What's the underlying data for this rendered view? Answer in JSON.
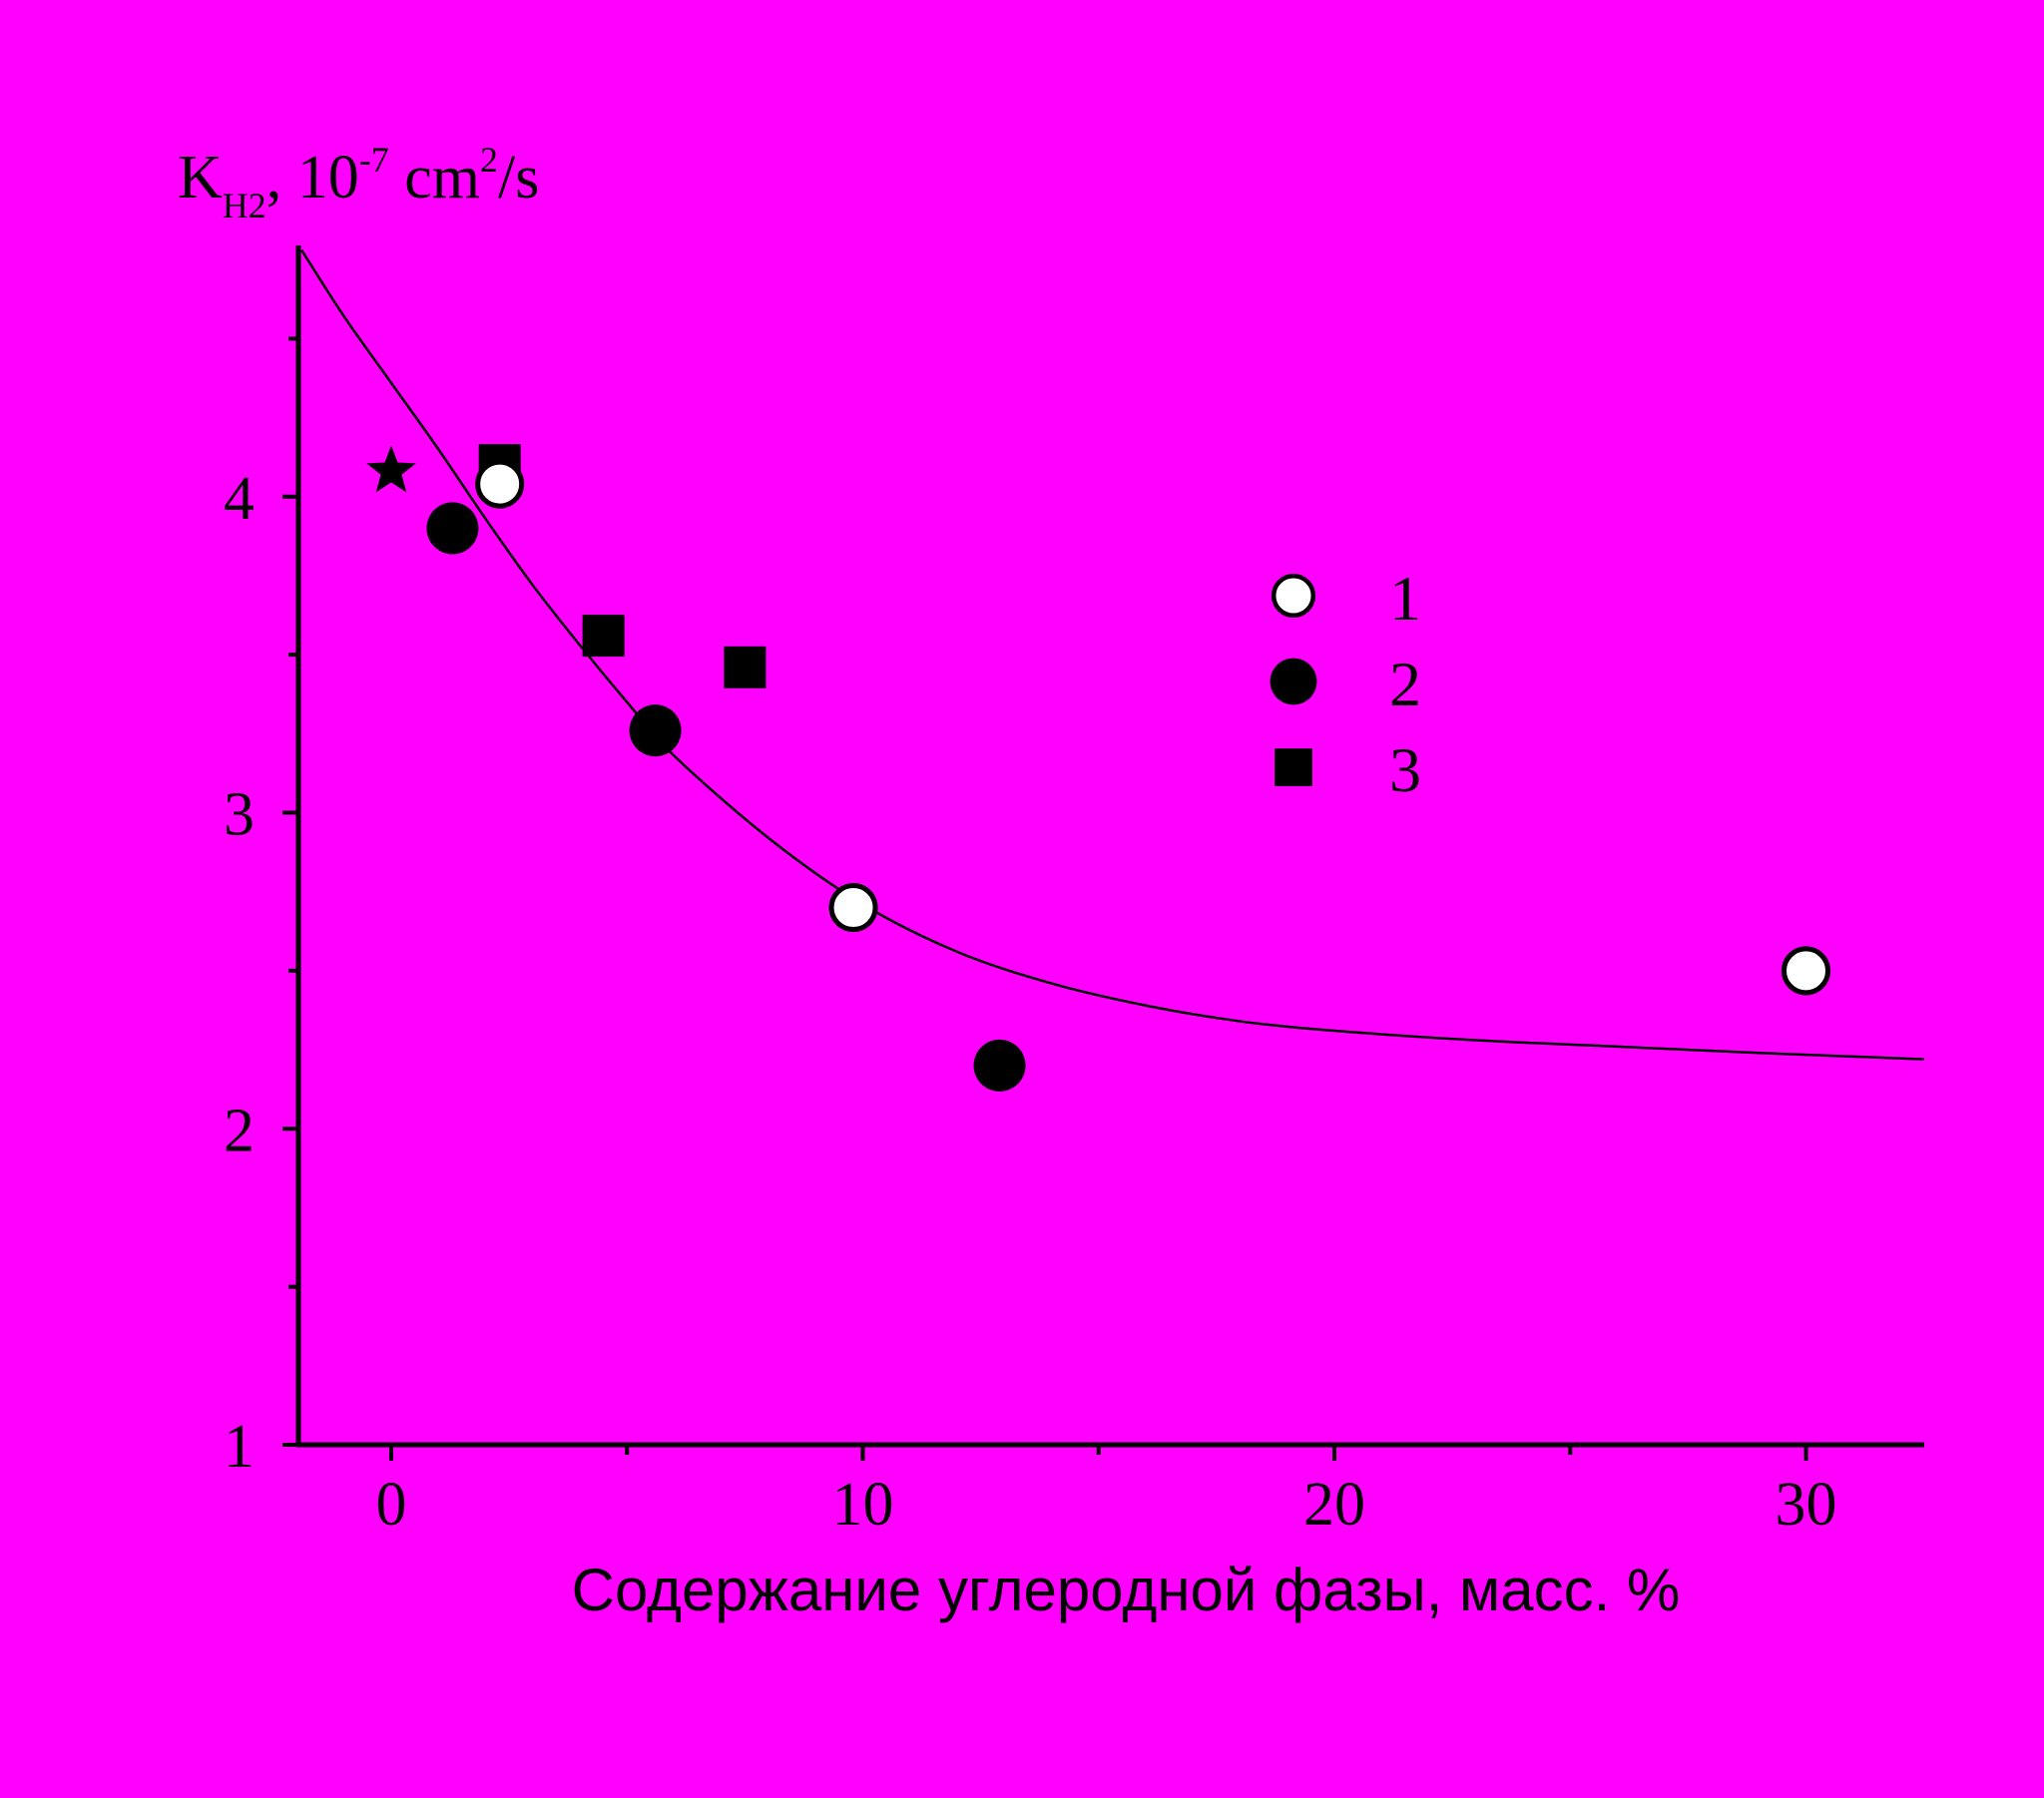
{
  "colors": {
    "background": "#ff00ff",
    "ink": "#000000",
    "open_marker_fill": "#ffffff"
  },
  "chart_data": {
    "type": "scatter",
    "xlabel": "Содержание углеродной фазы, масс. %",
    "ylabel": {
      "symbol": "K",
      "subscript": "H2",
      "text_a": ", 10",
      "exponent_a": "-7",
      "text_b": " cm",
      "exponent_b": "2",
      "text_c": "/s"
    },
    "xlim": [
      -2,
      32.5
    ],
    "ylim": [
      1,
      4.8
    ],
    "x_ticks": [
      0,
      10,
      20,
      30
    ],
    "x_tick_labels": [
      "0",
      "10",
      "20",
      "30"
    ],
    "y_ticks": [
      1,
      2,
      3,
      4
    ],
    "y_tick_labels": [
      "1",
      "2",
      "3",
      "4"
    ],
    "x_minor_ticks": [
      5,
      15,
      25
    ],
    "y_minor_ticks": [
      1.5,
      2.5,
      3.5,
      4.5
    ],
    "grid": false,
    "legend_position": "upper-right",
    "series": [
      {
        "name": "1",
        "marker": "open-circle",
        "points": [
          {
            "x": 2.3,
            "y": 4.04
          },
          {
            "x": 9.8,
            "y": 2.7
          },
          {
            "x": 30.0,
            "y": 2.5
          }
        ]
      },
      {
        "name": "2",
        "marker": "filled-circle",
        "points": [
          {
            "x": 1.3,
            "y": 3.9
          },
          {
            "x": 5.6,
            "y": 3.26
          },
          {
            "x": 12.9,
            "y": 2.2
          }
        ]
      },
      {
        "name": "3",
        "marker": "filled-square",
        "points": [
          {
            "x": 2.3,
            "y": 4.1
          },
          {
            "x": 4.5,
            "y": 3.56
          },
          {
            "x": 7.5,
            "y": 3.46
          }
        ]
      },
      {
        "marker": "star",
        "points": [
          {
            "x": 0.0,
            "y": 4.08
          }
        ]
      }
    ],
    "fit_curve": {
      "points": [
        {
          "x": -1.9,
          "y": 4.78
        },
        {
          "x": -1.0,
          "y": 4.57
        },
        {
          "x": 0.0,
          "y": 4.36
        },
        {
          "x": 1.0,
          "y": 4.15
        },
        {
          "x": 2.0,
          "y": 3.93
        },
        {
          "x": 3.0,
          "y": 3.72
        },
        {
          "x": 4.0,
          "y": 3.53
        },
        {
          "x": 5.0,
          "y": 3.35
        },
        {
          "x": 6.0,
          "y": 3.18
        },
        {
          "x": 8.0,
          "y": 2.92
        },
        {
          "x": 10.0,
          "y": 2.71
        },
        {
          "x": 12.0,
          "y": 2.56
        },
        {
          "x": 14.0,
          "y": 2.46
        },
        {
          "x": 16.0,
          "y": 2.39
        },
        {
          "x": 18.0,
          "y": 2.34
        },
        {
          "x": 20.0,
          "y": 2.31
        },
        {
          "x": 23.0,
          "y": 2.28
        },
        {
          "x": 26.0,
          "y": 2.26
        },
        {
          "x": 29.0,
          "y": 2.24
        },
        {
          "x": 32.5,
          "y": 2.22
        }
      ]
    }
  }
}
